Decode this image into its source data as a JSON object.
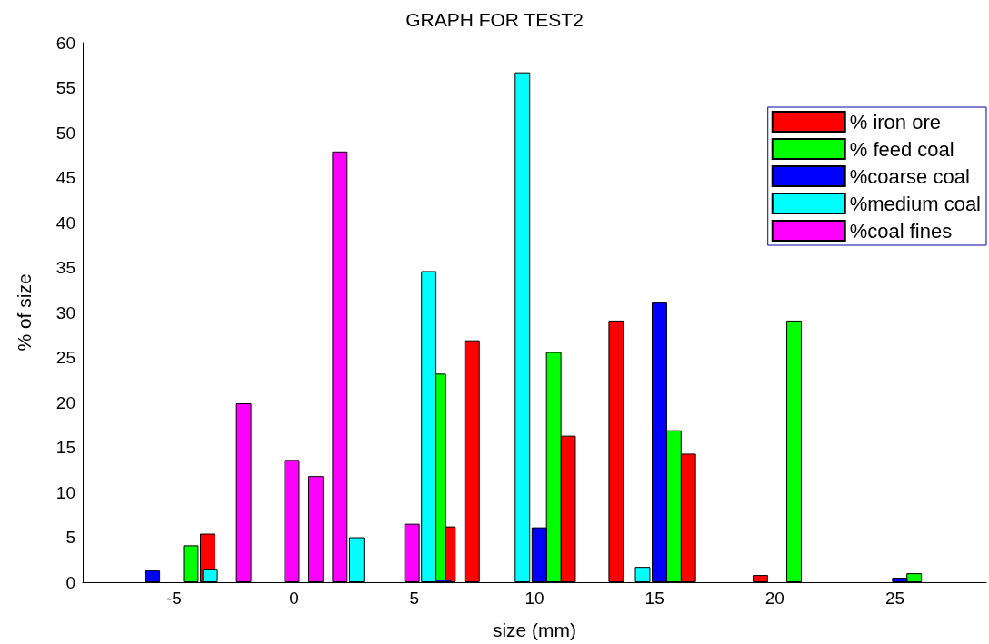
{
  "chart_data": {
    "type": "bar",
    "title": "GRAPH FOR TEST2",
    "xlabel": "size (mm)",
    "ylabel": "% of size",
    "xlim": [
      -8.8,
      28.8
    ],
    "xticks": [
      -5,
      0,
      5,
      10,
      15,
      20,
      25
    ],
    "ylim": [
      0,
      60
    ],
    "yticks": [
      0,
      5,
      10,
      15,
      20,
      25,
      30,
      35,
      40,
      45,
      50,
      55,
      60
    ],
    "grid": false,
    "legend": "top right",
    "series": [
      {
        "name": "% iron ore",
        "color": "#ff0000",
        "x": [
          -3.6,
          6.4,
          7.4,
          11.4,
          13.4,
          16.4,
          19.4
        ],
        "values": [
          5.4,
          6.2,
          26.9,
          16.3,
          29.1,
          14.3,
          0.8
        ]
      },
      {
        "name": "% feed coal",
        "color": "#00ff00",
        "x": [
          -4.3,
          6.0,
          10.8,
          15.8,
          20.8,
          25.8
        ],
        "values": [
          4.1,
          23.2,
          25.6,
          16.9,
          29.1,
          1.0
        ]
      },
      {
        "name": "%coarse coal",
        "color": "#0000ff",
        "x": [
          -5.9,
          6.2,
          10.2,
          15.2,
          25.2
        ],
        "values": [
          1.3,
          0.3,
          6.1,
          31.1,
          0.5
        ]
      },
      {
        "name": "%medium coal",
        "color": "#00ffff",
        "x": [
          -3.5,
          2.6,
          5.6,
          9.5,
          14.5
        ],
        "values": [
          1.5,
          5.0,
          34.6,
          56.7,
          1.7
        ]
      },
      {
        "name": "%coal fines",
        "color": "#ff00ff",
        "x": [
          -2.1,
          -0.1,
          0.9,
          1.9,
          4.9
        ],
        "values": [
          19.9,
          13.6,
          11.8,
          47.9,
          6.5
        ]
      }
    ]
  }
}
